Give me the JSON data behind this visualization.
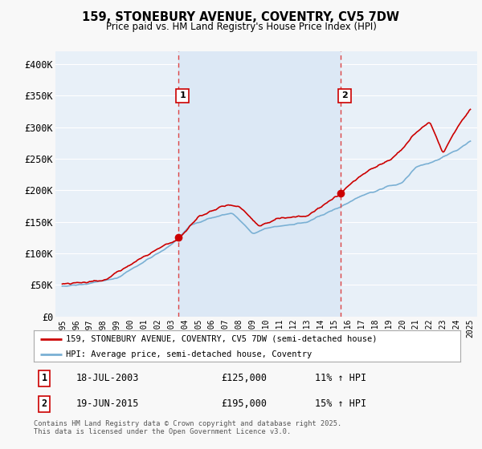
{
  "title": "159, STONEBURY AVENUE, COVENTRY, CV5 7DW",
  "subtitle": "Price paid vs. HM Land Registry's House Price Index (HPI)",
  "ylabel_ticks": [
    "£0",
    "£50K",
    "£100K",
    "£150K",
    "£200K",
    "£250K",
    "£300K",
    "£350K",
    "£400K"
  ],
  "ytick_values": [
    0,
    50000,
    100000,
    150000,
    200000,
    250000,
    300000,
    350000,
    400000
  ],
  "ylim": [
    0,
    420000
  ],
  "xlim_start": 1994.5,
  "xlim_end": 2025.5,
  "sale1_x": 2003.54,
  "sale1_y": 125000,
  "sale2_x": 2015.46,
  "sale2_y": 195000,
  "vline1_x": 2003.54,
  "vline2_x": 2015.46,
  "legend_line1": "159, STONEBURY AVENUE, COVENTRY, CV5 7DW (semi-detached house)",
  "legend_line2": "HPI: Average price, semi-detached house, Coventry",
  "footnote": "Contains HM Land Registry data © Crown copyright and database right 2025.\nThis data is licensed under the Open Government Licence v3.0.",
  "line_color_red": "#cc0000",
  "line_color_blue": "#7ab0d4",
  "bg_plot": "#e8f0f8",
  "bg_fig": "#f8f8f8",
  "bg_shaded": "#dce8f5",
  "grid_color": "#ffffff",
  "vline_color": "#dd4444"
}
